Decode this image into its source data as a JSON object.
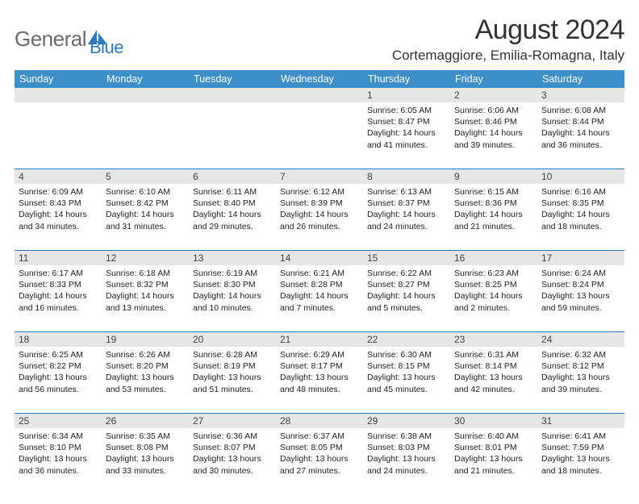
{
  "logo": {
    "text1": "General",
    "text2": "Blue"
  },
  "title": "August 2024",
  "location": "Cortemaggiore, Emilia-Romagna, Italy",
  "colors": {
    "header_bg": "#3d8fc9",
    "header_text": "#ffffff",
    "daynum_bg": "#e6e6e6",
    "divider": "#2d7abf",
    "logo_gray": "#6b6b6b",
    "logo_blue": "#2d7abf"
  },
  "dayNames": [
    "Sunday",
    "Monday",
    "Tuesday",
    "Wednesday",
    "Thursday",
    "Friday",
    "Saturday"
  ],
  "weeks": [
    {
      "nums": [
        "",
        "",
        "",
        "",
        "1",
        "2",
        "3"
      ],
      "cells": [
        null,
        null,
        null,
        null,
        {
          "sr": "6:05 AM",
          "ss": "8:47 PM",
          "dl": "14 hours and 41 minutes."
        },
        {
          "sr": "6:06 AM",
          "ss": "8:46 PM",
          "dl": "14 hours and 39 minutes."
        },
        {
          "sr": "6:08 AM",
          "ss": "8:44 PM",
          "dl": "14 hours and 36 minutes."
        }
      ]
    },
    {
      "nums": [
        "4",
        "5",
        "6",
        "7",
        "8",
        "9",
        "10"
      ],
      "cells": [
        {
          "sr": "6:09 AM",
          "ss": "8:43 PM",
          "dl": "14 hours and 34 minutes."
        },
        {
          "sr": "6:10 AM",
          "ss": "8:42 PM",
          "dl": "14 hours and 31 minutes."
        },
        {
          "sr": "6:11 AM",
          "ss": "8:40 PM",
          "dl": "14 hours and 29 minutes."
        },
        {
          "sr": "6:12 AM",
          "ss": "8:39 PM",
          "dl": "14 hours and 26 minutes."
        },
        {
          "sr": "6:13 AM",
          "ss": "8:37 PM",
          "dl": "14 hours and 24 minutes."
        },
        {
          "sr": "6:15 AM",
          "ss": "8:36 PM",
          "dl": "14 hours and 21 minutes."
        },
        {
          "sr": "6:16 AM",
          "ss": "8:35 PM",
          "dl": "14 hours and 18 minutes."
        }
      ]
    },
    {
      "nums": [
        "11",
        "12",
        "13",
        "14",
        "15",
        "16",
        "17"
      ],
      "cells": [
        {
          "sr": "6:17 AM",
          "ss": "8:33 PM",
          "dl": "14 hours and 16 minutes."
        },
        {
          "sr": "6:18 AM",
          "ss": "8:32 PM",
          "dl": "14 hours and 13 minutes."
        },
        {
          "sr": "6:19 AM",
          "ss": "8:30 PM",
          "dl": "14 hours and 10 minutes."
        },
        {
          "sr": "6:21 AM",
          "ss": "8:28 PM",
          "dl": "14 hours and 7 minutes."
        },
        {
          "sr": "6:22 AM",
          "ss": "8:27 PM",
          "dl": "14 hours and 5 minutes."
        },
        {
          "sr": "6:23 AM",
          "ss": "8:25 PM",
          "dl": "14 hours and 2 minutes."
        },
        {
          "sr": "6:24 AM",
          "ss": "8:24 PM",
          "dl": "13 hours and 59 minutes."
        }
      ]
    },
    {
      "nums": [
        "18",
        "19",
        "20",
        "21",
        "22",
        "23",
        "24"
      ],
      "cells": [
        {
          "sr": "6:25 AM",
          "ss": "8:22 PM",
          "dl": "13 hours and 56 minutes."
        },
        {
          "sr": "6:26 AM",
          "ss": "8:20 PM",
          "dl": "13 hours and 53 minutes."
        },
        {
          "sr": "6:28 AM",
          "ss": "8:19 PM",
          "dl": "13 hours and 51 minutes."
        },
        {
          "sr": "6:29 AM",
          "ss": "8:17 PM",
          "dl": "13 hours and 48 minutes."
        },
        {
          "sr": "6:30 AM",
          "ss": "8:15 PM",
          "dl": "13 hours and 45 minutes."
        },
        {
          "sr": "6:31 AM",
          "ss": "8:14 PM",
          "dl": "13 hours and 42 minutes."
        },
        {
          "sr": "6:32 AM",
          "ss": "8:12 PM",
          "dl": "13 hours and 39 minutes."
        }
      ]
    },
    {
      "nums": [
        "25",
        "26",
        "27",
        "28",
        "29",
        "30",
        "31"
      ],
      "cells": [
        {
          "sr": "6:34 AM",
          "ss": "8:10 PM",
          "dl": "13 hours and 36 minutes."
        },
        {
          "sr": "6:35 AM",
          "ss": "8:08 PM",
          "dl": "13 hours and 33 minutes."
        },
        {
          "sr": "6:36 AM",
          "ss": "8:07 PM",
          "dl": "13 hours and 30 minutes."
        },
        {
          "sr": "6:37 AM",
          "ss": "8:05 PM",
          "dl": "13 hours and 27 minutes."
        },
        {
          "sr": "6:38 AM",
          "ss": "8:03 PM",
          "dl": "13 hours and 24 minutes."
        },
        {
          "sr": "6:40 AM",
          "ss": "8:01 PM",
          "dl": "13 hours and 21 minutes."
        },
        {
          "sr": "6:41 AM",
          "ss": "7:59 PM",
          "dl": "13 hours and 18 minutes."
        }
      ]
    }
  ],
  "labels": {
    "sunrise": "Sunrise:",
    "sunset": "Sunset:",
    "daylight": "Daylight:"
  }
}
